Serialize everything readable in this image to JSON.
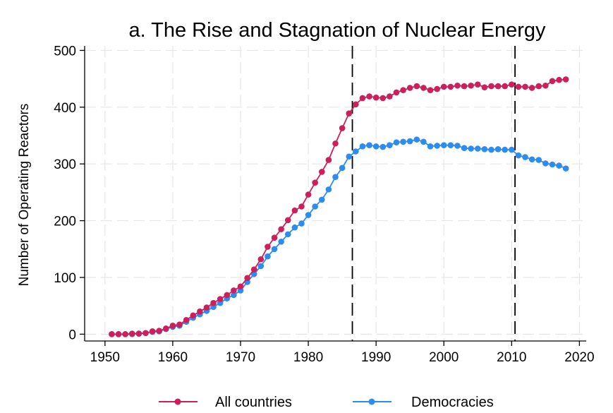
{
  "chart_data": {
    "type": "line",
    "title": "a. The Rise and Stagnation of Nuclear Energy",
    "xlabel": "",
    "ylabel": "Number of Operating Reactors",
    "xlim": [
      1947,
      2021
    ],
    "ylim": [
      -12,
      508
    ],
    "xticks": [
      1950,
      1960,
      1970,
      1980,
      1990,
      2000,
      2010,
      2020
    ],
    "yticks": [
      0,
      100,
      200,
      300,
      400,
      500
    ],
    "grid": true,
    "legend_position": "bottom",
    "vlines": [
      1986.5,
      2010.5
    ],
    "x": [
      1951,
      1952,
      1953,
      1954,
      1955,
      1956,
      1957,
      1958,
      1959,
      1960,
      1961,
      1962,
      1963,
      1964,
      1965,
      1966,
      1967,
      1968,
      1969,
      1970,
      1971,
      1972,
      1973,
      1974,
      1975,
      1976,
      1977,
      1978,
      1979,
      1980,
      1981,
      1982,
      1983,
      1984,
      1985,
      1986,
      1987,
      1988,
      1989,
      1990,
      1991,
      1992,
      1993,
      1994,
      1995,
      1996,
      1997,
      1998,
      1999,
      2000,
      2001,
      2002,
      2003,
      2004,
      2005,
      2006,
      2007,
      2008,
      2009,
      2010,
      2011,
      2012,
      2013,
      2014,
      2015,
      2016,
      2017,
      2018
    ],
    "series": [
      {
        "name": "All countries",
        "color": "#cc1f5c",
        "values": [
          0,
          0,
          0,
          1,
          1,
          2,
          5,
          6,
          10,
          15,
          17,
          25,
          33,
          40,
          47,
          55,
          62,
          69,
          77,
          84,
          99,
          114,
          132,
          154,
          170,
          185,
          201,
          218,
          225,
          246,
          267,
          286,
          307,
          336,
          363,
          389,
          405,
          416,
          419,
          417,
          416,
          419,
          426,
          430,
          434,
          437,
          434,
          430,
          432,
          436,
          436,
          438,
          437,
          438,
          440,
          435,
          437,
          437,
          437,
          440,
          436,
          436,
          434,
          437,
          438,
          446,
          448,
          449
        ]
      },
      {
        "name": "Democracies",
        "color": "#2d8cf0",
        "values": [
          0,
          0,
          0,
          0,
          1,
          2,
          4,
          5,
          9,
          13,
          15,
          22,
          29,
          35,
          41,
          48,
          55,
          63,
          69,
          77,
          92,
          106,
          120,
          137,
          150,
          163,
          176,
          188,
          195,
          210,
          225,
          237,
          255,
          277,
          293,
          313,
          322,
          331,
          333,
          331,
          330,
          333,
          338,
          339,
          340,
          343,
          339,
          331,
          332,
          333,
          333,
          332,
          328,
          327,
          327,
          326,
          325,
          326,
          325,
          325,
          315,
          312,
          308,
          307,
          301,
          299,
          297,
          292
        ]
      }
    ]
  }
}
